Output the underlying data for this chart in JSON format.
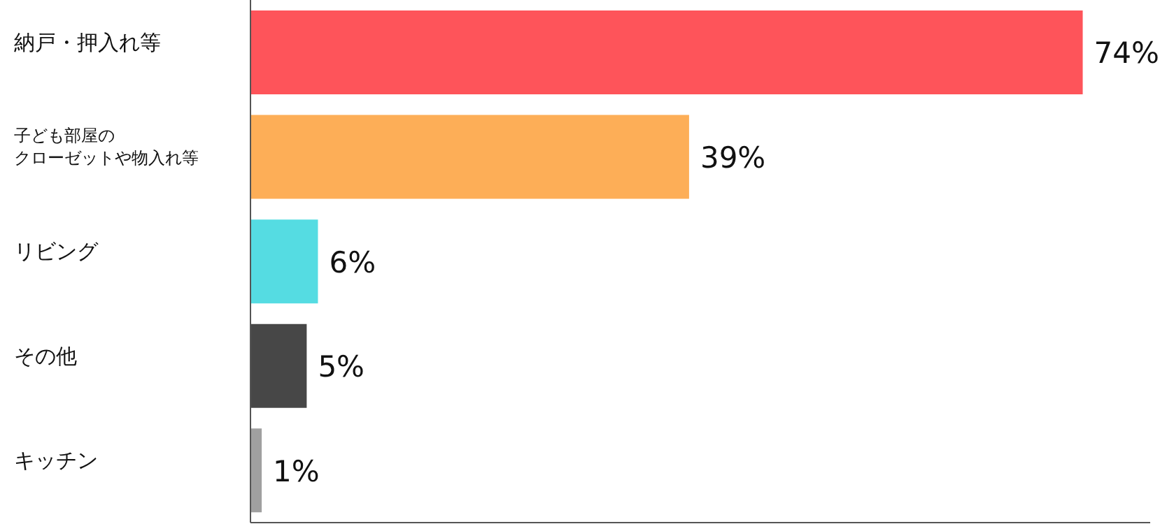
{
  "chart_data": {
    "type": "bar",
    "orientation": "horizontal",
    "categories": [
      "納戸・押入れ等",
      "子ども部屋のクローゼットや物入れ等",
      "リビング",
      "その他",
      "キッチン"
    ],
    "values": [
      74,
      39,
      6,
      5,
      1
    ],
    "colors": [
      "#fe545a",
      "#fdae57",
      "#55dce2",
      "#474747",
      "#a0a0a0"
    ],
    "value_labels": [
      "74%",
      "39%",
      "6%",
      "5%",
      "1%"
    ],
    "xlim": [
      0,
      80
    ],
    "tick_labels": "y"
  }
}
